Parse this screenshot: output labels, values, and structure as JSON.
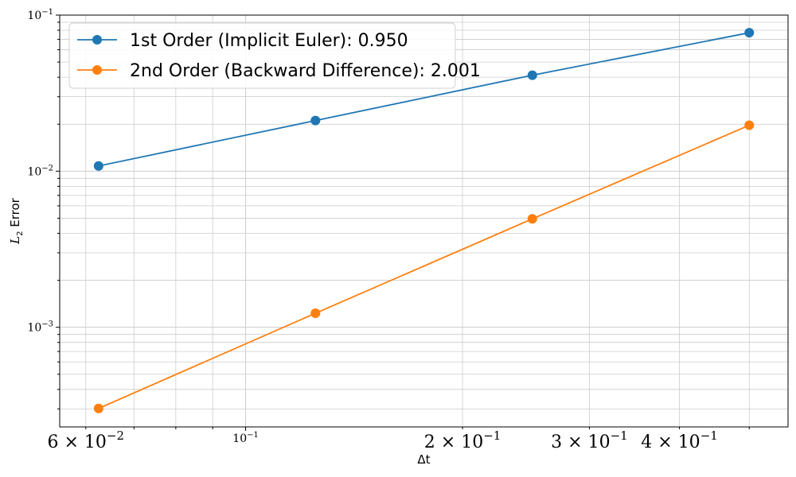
{
  "chart_data": {
    "type": "line",
    "xscale": "log",
    "yscale": "log",
    "x": [
      0.0625,
      0.125,
      0.25,
      0.5
    ],
    "series": [
      {
        "name": "1st Order (Implicit Euler): 0.950",
        "color": "#1f77b4",
        "values": [
          0.0108,
          0.0211,
          0.0412,
          0.0771
        ]
      },
      {
        "name": "2nd Order (Backward Difference): 2.001",
        "color": "#ff7f0e",
        "values": [
          0.000302,
          0.00123,
          0.00495,
          0.0197
        ]
      }
    ],
    "xlabel": "Δt",
    "ylabel_main": "L",
    "ylabel_sub": "2",
    "ylabel_rest": " Error",
    "xlim": [
      0.0552,
      0.566
    ],
    "ylim": [
      0.00023,
      0.1
    ],
    "x_major_ticks": [
      {
        "value": 0.1,
        "base": "10",
        "exp": "−1"
      }
    ],
    "x_minor_labeled_ticks": [
      {
        "value": 0.06,
        "coef": "6",
        "base": "10",
        "exp": "−2"
      },
      {
        "value": 0.2,
        "coef": "2",
        "base": "10",
        "exp": "−1"
      },
      {
        "value": 0.3,
        "coef": "3",
        "base": "10",
        "exp": "−1"
      },
      {
        "value": 0.4,
        "coef": "4",
        "base": "10",
        "exp": "−1"
      }
    ],
    "y_major_ticks": [
      {
        "value": 0.001,
        "base": "10",
        "exp": "−3"
      },
      {
        "value": 0.01,
        "base": "10",
        "exp": "−2"
      },
      {
        "value": 0.1,
        "base": "10",
        "exp": "−1"
      }
    ],
    "times_symbol": "×",
    "grid": true,
    "grid_color": "#cccccc",
    "legend_position": "upper-left"
  }
}
